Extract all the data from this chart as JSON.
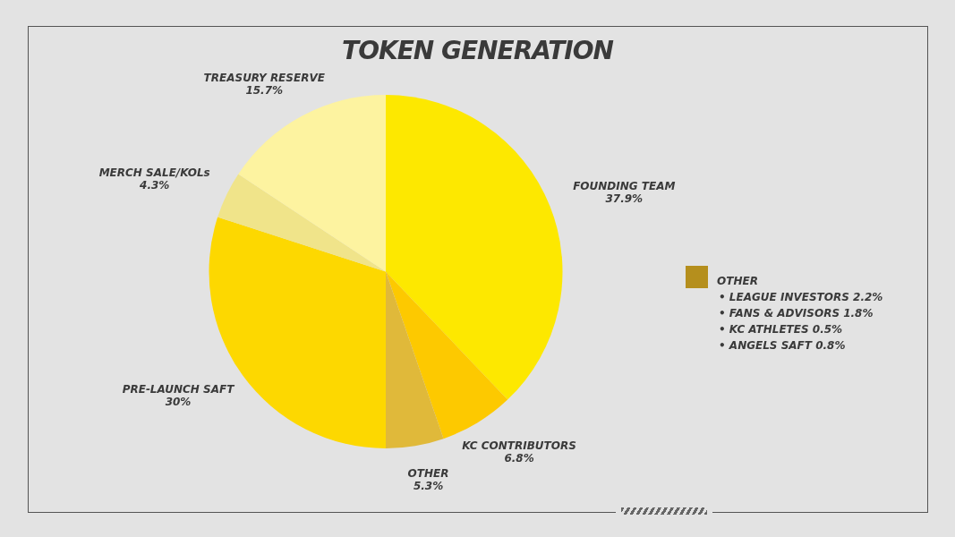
{
  "chart_data": {
    "type": "pie",
    "title": "TOKEN GENERATION",
    "categories": [
      "FOUNDING TEAM",
      "KC CONTRIBUTORS",
      "OTHER",
      "PRE-LAUNCH SAFT",
      "MERCH SALE/KOLs",
      "TREASURY RESERVE"
    ],
    "values": [
      37.9,
      6.8,
      5.3,
      30,
      4.3,
      15.7
    ],
    "value_labels": [
      "37.9%",
      "6.8%",
      "5.3%",
      "30%",
      "4.3%",
      "15.7%"
    ],
    "colors": [
      "#fde800",
      "#fdc900",
      "#e0b93a",
      "#fdd800",
      "#f0e48a",
      "#fdf3a0"
    ],
    "legend_title": "OTHER",
    "annotations": [
      "• LEAGUE INVESTORS 2.2%",
      "• FANS & ADVISORS 1.8%",
      "• KC ATHLETES 0.5%",
      "• ANGELS SAFT 0.8%"
    ]
  }
}
